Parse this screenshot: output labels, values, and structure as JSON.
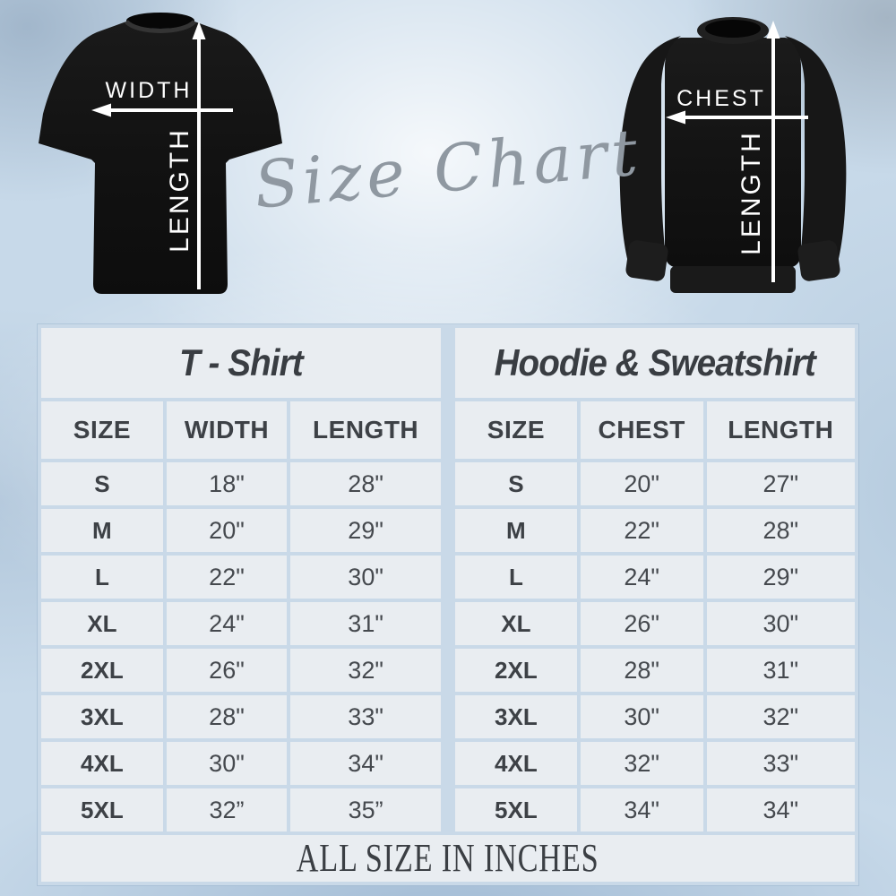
{
  "script_title": "Size Chart",
  "footer_note": "ALL SIZE IN INCHES",
  "diagrams": {
    "tshirt": {
      "horizontal": "WIDTH",
      "vertical": "LENGTH"
    },
    "sweatshirt": {
      "horizontal": "CHEST",
      "vertical": "LENGTH"
    }
  },
  "chart_data": [
    {
      "type": "table",
      "title": "T - Shirt",
      "columns": [
        "SIZE",
        "WIDTH",
        "LENGTH"
      ],
      "rows": [
        [
          "S",
          "18\"",
          "28\""
        ],
        [
          "M",
          "20\"",
          "29\""
        ],
        [
          "L",
          "22\"",
          "30\""
        ],
        [
          "XL",
          "24\"",
          "31\""
        ],
        [
          "2XL",
          "26\"",
          "32\""
        ],
        [
          "3XL",
          "28\"",
          "33\""
        ],
        [
          "4XL",
          "30\"",
          "34\""
        ],
        [
          "5XL",
          "32”",
          "35”"
        ]
      ]
    },
    {
      "type": "table",
      "title": "Hoodie & Sweatshirt",
      "columns": [
        "SIZE",
        "CHEST",
        "LENGTH"
      ],
      "rows": [
        [
          "S",
          "20\"",
          "27\""
        ],
        [
          "M",
          "22\"",
          "28\""
        ],
        [
          "L",
          "24\"",
          "29\""
        ],
        [
          "XL",
          "26\"",
          "30\""
        ],
        [
          "2XL",
          "28\"",
          "31\""
        ],
        [
          "3XL",
          "30\"",
          "32\""
        ],
        [
          "4XL",
          "32\"",
          "33\""
        ],
        [
          "5XL",
          "34\"",
          "34\""
        ]
      ]
    }
  ],
  "colors": {
    "background_base": "#c7d9e9",
    "table_border": "#c9d9e8",
    "cell_background": "#e9edf1",
    "text_dark": "#3d4146",
    "script_gray": "#8f98a1",
    "garment_black": "#141414",
    "arrow_white": "#ffffff"
  }
}
